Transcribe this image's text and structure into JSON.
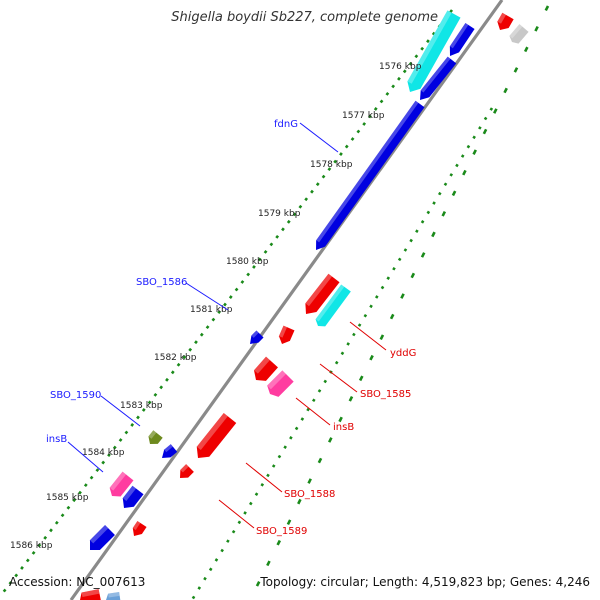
{
  "title": "Shigella boydii Sb227, complete genome",
  "accession": "Accession: NC_007613",
  "summary": "Topology: circular; Length: 4,519,823 bp; Genes: 4,246",
  "colors": {
    "backbone": "#8a8a8a",
    "ticks": "#1a8a1a",
    "blue_label": "#1a1aff",
    "red_label": "#e00000",
    "blue_gene": "#0000e0",
    "red_gene": "#ee0000",
    "cyan_gene": "#10e6e6",
    "pink_gene": "#ff3ca0",
    "olive_gene": "#6e8a1e",
    "gray_gene": "#c8c8c8"
  },
  "ticks": [
    {
      "label": "1576 kbp"
    },
    {
      "label": "1577 kbp"
    },
    {
      "label": "1578 kbp"
    },
    {
      "label": "1579 kbp"
    },
    {
      "label": "1580 kbp"
    },
    {
      "label": "1581 kbp"
    },
    {
      "label": "1582 kbp"
    },
    {
      "label": "1583 kbp"
    },
    {
      "label": "1584 kbp"
    },
    {
      "label": "1585 kbp"
    },
    {
      "label": "1586 kbp"
    }
  ],
  "gene_labels_left": [
    "fdnG",
    "SBO_1586",
    "SBO_1590",
    "insB"
  ],
  "gene_labels_right": [
    "yddG",
    "SBO_1585",
    "insB",
    "SBO_1588",
    "SBO_1589"
  ]
}
